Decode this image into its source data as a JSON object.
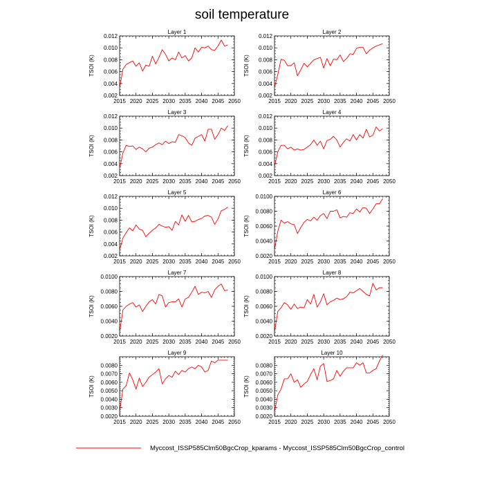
{
  "figure": {
    "title": "soil temperature",
    "legend_label": "Myccost_ISSP585Clm50BgcCrop_kparams - Myccost_ISSP585Clm50BgcCrop_control",
    "series_color": "#ff0000"
  },
  "chart_data": [
    {
      "type": "line",
      "title": "Layer 1",
      "ylabel": "TSOI  (K)",
      "xlim": [
        2015,
        2050
      ],
      "ylim": [
        0.002,
        0.012
      ],
      "xticks": [
        "2015",
        "2020",
        "2025",
        "2030",
        "2035",
        "2040",
        "2045",
        "2050"
      ],
      "yticks": [
        "0.002",
        "0.004",
        "0.006",
        "0.008",
        "0.010",
        "0.012"
      ],
      "x": [
        2015,
        2016,
        2017,
        2018,
        2019,
        2020,
        2021,
        2022,
        2023,
        2024,
        2025,
        2026,
        2027,
        2028,
        2029,
        2030,
        2031,
        2032,
        2033,
        2034,
        2035,
        2036,
        2037,
        2038,
        2039,
        2040,
        2041,
        2042,
        2043,
        2044,
        2045,
        2046,
        2047,
        2048
      ],
      "series": [
        {
          "name": "Myccost_ISSP585Clm50BgcCrop_kparams - Myccost_ISSP585Clm50BgcCrop_control",
          "values": [
            0.0032,
            0.0064,
            0.0072,
            0.0075,
            0.0078,
            0.0069,
            0.0075,
            0.0061,
            0.0071,
            0.0069,
            0.0086,
            0.0073,
            0.0084,
            0.0097,
            0.0089,
            0.0078,
            0.0083,
            0.008,
            0.0093,
            0.0083,
            0.0087,
            0.0078,
            0.0083,
            0.01,
            0.0093,
            0.0101,
            0.01,
            0.0103,
            0.0097,
            0.0096,
            0.0103,
            0.0113,
            0.0103,
            0.0105
          ]
        }
      ]
    },
    {
      "type": "line",
      "title": "Layer 2",
      "ylabel": "TSOI  (K)",
      "xlim": [
        2015,
        2050
      ],
      "ylim": [
        0.002,
        0.012
      ],
      "xticks": [
        "2015",
        "2020",
        "2025",
        "2030",
        "2035",
        "2040",
        "2045",
        "2050"
      ],
      "yticks": [
        "0.002",
        "0.004",
        "0.006",
        "0.008",
        "0.010",
        "0.012"
      ],
      "x": [
        2015,
        2016,
        2017,
        2018,
        2019,
        2020,
        2021,
        2022,
        2023,
        2024,
        2025,
        2026,
        2027,
        2028,
        2029,
        2030,
        2031,
        2032,
        2033,
        2034,
        2035,
        2036,
        2037,
        2038,
        2039,
        2040,
        2041,
        2042,
        2043,
        2044,
        2045,
        2046,
        2047,
        2048
      ],
      "series": [
        {
          "name": "Myccost_ISSP585Clm50BgcCrop_kparams - Myccost_ISSP585Clm50BgcCrop_control",
          "values": [
            0.0033,
            0.0055,
            0.0081,
            0.0079,
            0.007,
            0.007,
            0.0075,
            0.0053,
            0.0063,
            0.0074,
            0.0068,
            0.0074,
            0.008,
            0.0082,
            0.0084,
            0.0066,
            0.0082,
            0.007,
            0.0081,
            0.008,
            0.0088,
            0.0077,
            0.0082,
            0.009,
            0.0089,
            0.0099,
            0.0101,
            0.0101,
            0.009,
            0.0096,
            0.01,
            0.0103,
            0.0105,
            0.0107
          ]
        }
      ]
    },
    {
      "type": "line",
      "title": "Layer 3",
      "ylabel": "TSOI  (K)",
      "xlim": [
        2015,
        2050
      ],
      "ylim": [
        0.002,
        0.012
      ],
      "xticks": [
        "2015",
        "2020",
        "2025",
        "2030",
        "2035",
        "2040",
        "2045",
        "2050"
      ],
      "yticks": [
        "0.002",
        "0.004",
        "0.006",
        "0.008",
        "0.010",
        "0.012"
      ],
      "x": [
        2015,
        2016,
        2017,
        2018,
        2019,
        2020,
        2021,
        2022,
        2023,
        2024,
        2025,
        2026,
        2027,
        2028,
        2029,
        2030,
        2031,
        2032,
        2033,
        2034,
        2035,
        2036,
        2037,
        2038,
        2039,
        2040,
        2041,
        2042,
        2043,
        2044,
        2045,
        2046,
        2047,
        2048
      ],
      "series": [
        {
          "name": "Myccost_ISSP585Clm50BgcCrop_kparams - Myccost_ISSP585Clm50BgcCrop_control",
          "values": [
            0.0032,
            0.0058,
            0.0071,
            0.0069,
            0.007,
            0.0064,
            0.0068,
            0.0065,
            0.006,
            0.0066,
            0.0068,
            0.0072,
            0.0075,
            0.0072,
            0.0078,
            0.0074,
            0.0077,
            0.0076,
            0.0089,
            0.0087,
            0.0084,
            0.0075,
            0.0071,
            0.0083,
            0.0086,
            0.0089,
            0.0078,
            0.0098,
            0.0098,
            0.0081,
            0.0089,
            0.01,
            0.0096,
            0.0104
          ]
        }
      ]
    },
    {
      "type": "line",
      "title": "Layer 4",
      "ylabel": "TSOI  (K)",
      "xlim": [
        2015,
        2050
      ],
      "ylim": [
        0.002,
        0.012
      ],
      "xticks": [
        "2015",
        "2020",
        "2025",
        "2030",
        "2035",
        "2040",
        "2045",
        "2050"
      ],
      "yticks": [
        "0.002",
        "0.004",
        "0.006",
        "0.008",
        "0.010",
        "0.012"
      ],
      "x": [
        2015,
        2016,
        2017,
        2018,
        2019,
        2020,
        2021,
        2022,
        2023,
        2024,
        2025,
        2026,
        2027,
        2028,
        2029,
        2030,
        2031,
        2032,
        2033,
        2034,
        2035,
        2036,
        2037,
        2038,
        2039,
        2040,
        2041,
        2042,
        2043,
        2044,
        2045,
        2046,
        2047,
        2048
      ],
      "series": [
        {
          "name": "Myccost_ISSP585Clm50BgcCrop_kparams - Myccost_ISSP585Clm50BgcCrop_control",
          "values": [
            0.0035,
            0.006,
            0.0071,
            0.0071,
            0.0065,
            0.0068,
            0.0063,
            0.0065,
            0.0063,
            0.0064,
            0.0068,
            0.0072,
            0.008,
            0.0071,
            0.0078,
            0.0065,
            0.0079,
            0.0081,
            0.0086,
            0.008,
            0.0068,
            0.0076,
            0.0082,
            0.0078,
            0.0089,
            0.008,
            0.0089,
            0.0083,
            0.0098,
            0.0085,
            0.0088,
            0.0102,
            0.0095,
            0.0099
          ]
        }
      ]
    },
    {
      "type": "line",
      "title": "Layer 5",
      "ylabel": "TSOI  (K)",
      "xlim": [
        2015,
        2050
      ],
      "ylim": [
        0.002,
        0.012
      ],
      "xticks": [
        "2015",
        "2020",
        "2025",
        "2030",
        "2035",
        "2040",
        "2045",
        "2050"
      ],
      "yticks": [
        "0.002",
        "0.004",
        "0.006",
        "0.008",
        "0.010",
        "0.012"
      ],
      "x": [
        2015,
        2016,
        2017,
        2018,
        2019,
        2020,
        2021,
        2022,
        2023,
        2024,
        2025,
        2026,
        2027,
        2028,
        2029,
        2030,
        2031,
        2032,
        2033,
        2034,
        2035,
        2036,
        2037,
        2038,
        2039,
        2040,
        2041,
        2042,
        2043,
        2044,
        2045,
        2046,
        2047,
        2048
      ],
      "series": [
        {
          "name": "Myccost_ISSP585Clm50BgcCrop_kparams - Myccost_ISSP585Clm50BgcCrop_control",
          "values": [
            0.003,
            0.005,
            0.0059,
            0.0067,
            0.0062,
            0.0072,
            0.0065,
            0.0063,
            0.0052,
            0.0058,
            0.0063,
            0.0067,
            0.0073,
            0.007,
            0.0068,
            0.0069,
            0.0063,
            0.0078,
            0.0072,
            0.0089,
            0.0078,
            0.0088,
            0.0077,
            0.0078,
            0.0081,
            0.0083,
            0.0087,
            0.0088,
            0.0085,
            0.0073,
            0.0082,
            0.0096,
            0.0098,
            0.0102
          ]
        }
      ]
    },
    {
      "type": "line",
      "title": "Layer 6",
      "ylabel": "TSOI  (K)",
      "xlim": [
        2015,
        2050
      ],
      "ylim": [
        0.002,
        0.01
      ],
      "xticks": [
        "2015",
        "2020",
        "2025",
        "2030",
        "2035",
        "2040",
        "2045",
        "2050"
      ],
      "yticks": [
        "0.0020",
        "0.0040",
        "0.0060",
        "0.0080",
        "0.0100"
      ],
      "x": [
        2015,
        2016,
        2017,
        2018,
        2019,
        2020,
        2021,
        2022,
        2023,
        2024,
        2025,
        2026,
        2027,
        2028,
        2029,
        2030,
        2031,
        2032,
        2033,
        2034,
        2035,
        2036,
        2037,
        2038,
        2039,
        2040,
        2041,
        2042,
        2043,
        2044,
        2045,
        2046,
        2047,
        2048
      ],
      "series": [
        {
          "name": "Myccost_ISSP585Clm50BgcCrop_kparams - Myccost_ISSP585Clm50BgcCrop_control",
          "values": [
            0.0028,
            0.0053,
            0.0068,
            0.0064,
            0.0066,
            0.0063,
            0.0062,
            0.005,
            0.0058,
            0.0065,
            0.0069,
            0.0067,
            0.0072,
            0.0068,
            0.0074,
            0.0077,
            0.007,
            0.008,
            0.008,
            0.0082,
            0.0071,
            0.0073,
            0.0072,
            0.0078,
            0.0077,
            0.0083,
            0.0079,
            0.0085,
            0.0084,
            0.0077,
            0.0083,
            0.009,
            0.009,
            0.0097
          ]
        }
      ]
    },
    {
      "type": "line",
      "title": "Layer 7",
      "ylabel": "TSOI  (K)",
      "xlim": [
        2015,
        2050
      ],
      "ylim": [
        0.002,
        0.01
      ],
      "xticks": [
        "2015",
        "2020",
        "2025",
        "2030",
        "2035",
        "2040",
        "2045",
        "2050"
      ],
      "yticks": [
        "0.0020",
        "0.0040",
        "0.0060",
        "0.0080",
        "0.0100"
      ],
      "x": [
        2015,
        2016,
        2017,
        2018,
        2019,
        2020,
        2021,
        2022,
        2023,
        2024,
        2025,
        2026,
        2027,
        2028,
        2029,
        2030,
        2031,
        2032,
        2033,
        2034,
        2035,
        2036,
        2037,
        2038,
        2039,
        2040,
        2041,
        2042,
        2043,
        2044,
        2045,
        2046,
        2047,
        2048
      ],
      "series": [
        {
          "name": "Myccost_ISSP585Clm50BgcCrop_kparams - Myccost_ISSP585Clm50BgcCrop_control",
          "values": [
            0.0025,
            0.0055,
            0.006,
            0.0063,
            0.0065,
            0.0059,
            0.0062,
            0.0053,
            0.006,
            0.0066,
            0.0069,
            0.0063,
            0.0076,
            0.0074,
            0.0059,
            0.0065,
            0.0066,
            0.0066,
            0.007,
            0.0059,
            0.007,
            0.0072,
            0.0079,
            0.0087,
            0.0076,
            0.0079,
            0.0078,
            0.008,
            0.0072,
            0.0082,
            0.0087,
            0.009,
            0.0081,
            0.0082
          ]
        }
      ]
    },
    {
      "type": "line",
      "title": "Layer 8",
      "ylabel": "TSOI  (K)",
      "xlim": [
        2015,
        2050
      ],
      "ylim": [
        0.002,
        0.01
      ],
      "xticks": [
        "2015",
        "2020",
        "2025",
        "2030",
        "2035",
        "2040",
        "2045",
        "2050"
      ],
      "yticks": [
        "0.0020",
        "0.0040",
        "0.0060",
        "0.0080",
        "0.0100"
      ],
      "x": [
        2015,
        2016,
        2017,
        2018,
        2019,
        2020,
        2021,
        2022,
        2023,
        2024,
        2025,
        2026,
        2027,
        2028,
        2029,
        2030,
        2031,
        2032,
        2033,
        2034,
        2035,
        2036,
        2037,
        2038,
        2039,
        2040,
        2041,
        2042,
        2043,
        2044,
        2045,
        2046,
        2047,
        2048
      ],
      "series": [
        {
          "name": "Myccost_ISSP585Clm50BgcCrop_kparams - Myccost_ISSP585Clm50BgcCrop_control",
          "values": [
            0.0025,
            0.0053,
            0.0058,
            0.0065,
            0.0062,
            0.0056,
            0.0063,
            0.0057,
            0.0059,
            0.0058,
            0.0069,
            0.0063,
            0.0076,
            0.0059,
            0.0066,
            0.0077,
            0.0062,
            0.0066,
            0.0068,
            0.0071,
            0.0069,
            0.007,
            0.0073,
            0.0079,
            0.0078,
            0.0081,
            0.0084,
            0.008,
            0.0076,
            0.0074,
            0.0091,
            0.0082,
            0.0085,
            0.0085
          ]
        }
      ]
    },
    {
      "type": "line",
      "title": "Layer 9",
      "ylabel": "TSOI  (K)",
      "xlim": [
        2015,
        2050
      ],
      "ylim": [
        0.002,
        0.009
      ],
      "xticks": [
        "2015",
        "2020",
        "2025",
        "2030",
        "2035",
        "2040",
        "2045",
        "2050"
      ],
      "yticks": [
        "0.0020",
        "0.0030",
        "0.0040",
        "0.0050",
        "0.0060",
        "0.0070",
        "0.0080"
      ],
      "x": [
        2015,
        2016,
        2017,
        2018,
        2019,
        2020,
        2021,
        2022,
        2023,
        2024,
        2025,
        2026,
        2027,
        2028,
        2029,
        2030,
        2031,
        2032,
        2033,
        2034,
        2035,
        2036,
        2037,
        2038,
        2039,
        2040,
        2041,
        2042,
        2043,
        2044,
        2045,
        2046,
        2047,
        2048
      ],
      "series": [
        {
          "name": "Myccost_ISSP585Clm50BgcCrop_kparams - Myccost_ISSP585Clm50BgcCrop_control",
          "values": [
            0.0025,
            0.0052,
            0.0056,
            0.0071,
            0.0063,
            0.0052,
            0.0065,
            0.0055,
            0.006,
            0.0066,
            0.0069,
            0.0072,
            0.0076,
            0.0058,
            0.0064,
            0.0068,
            0.0066,
            0.0073,
            0.0069,
            0.0074,
            0.0072,
            0.0076,
            0.0078,
            0.0076,
            0.008,
            0.0078,
            0.0072,
            0.0074,
            0.0085,
            0.0083,
            0.0086,
            0.0086,
            0.0086,
            0.0086
          ]
        }
      ]
    },
    {
      "type": "line",
      "title": "Layer 10",
      "ylabel": "TSOI  (K)",
      "xlim": [
        2015,
        2050
      ],
      "ylim": [
        0.002,
        0.009
      ],
      "xticks": [
        "2015",
        "2020",
        "2025",
        "2030",
        "2035",
        "2040",
        "2045",
        "2050"
      ],
      "yticks": [
        "0.0020",
        "0.0030",
        "0.0040",
        "0.0050",
        "0.0060",
        "0.0070",
        "0.0080"
      ],
      "x": [
        2015,
        2016,
        2017,
        2018,
        2019,
        2020,
        2021,
        2022,
        2023,
        2024,
        2025,
        2026,
        2027,
        2028,
        2029,
        2030,
        2031,
        2032,
        2033,
        2034,
        2035,
        2036,
        2037,
        2038,
        2039,
        2040,
        2041,
        2042,
        2043,
        2044,
        2045,
        2046,
        2047,
        2048
      ],
      "series": [
        {
          "name": "Myccost_ISSP585Clm50BgcCrop_kparams - Myccost_ISSP585Clm50BgcCrop_control",
          "values": [
            0.0025,
            0.0045,
            0.0052,
            0.0064,
            0.0064,
            0.007,
            0.006,
            0.0063,
            0.0054,
            0.0058,
            0.0061,
            0.0069,
            0.0076,
            0.0063,
            0.0079,
            0.0082,
            0.0061,
            0.0062,
            0.0064,
            0.0074,
            0.0067,
            0.0073,
            0.0077,
            0.0077,
            0.0077,
            0.0083,
            0.008,
            0.0083,
            0.0071,
            0.0071,
            0.0074,
            0.0076,
            0.0085,
            0.0092
          ]
        }
      ]
    }
  ]
}
